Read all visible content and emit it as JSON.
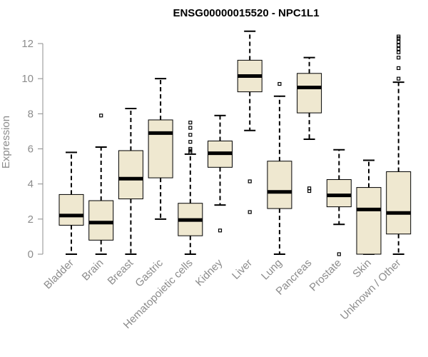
{
  "chart_data": {
    "type": "boxplot",
    "title": "ENSG00000015520 - NPC1L1",
    "ylabel": "Expression",
    "xlabel": "",
    "ylim": [
      0,
      12.7
    ],
    "yticks": [
      0,
      2,
      4,
      6,
      8,
      10,
      12
    ],
    "box_color": "#efe8d0",
    "categories": [
      "Bladder",
      "Brain",
      "Breast",
      "Gastric",
      "Hematopoietic cells",
      "Kidney",
      "Liver",
      "Lung",
      "Pancreas",
      "Prostate",
      "Skin",
      "Unknown / Other"
    ],
    "boxes": [
      {
        "name": "Bladder",
        "min": 0,
        "q1": 1.65,
        "median": 2.2,
        "q3": 3.4,
        "max": 5.8,
        "outliers": []
      },
      {
        "name": "Brain",
        "min": 0,
        "q1": 0.8,
        "median": 1.8,
        "q3": 3.05,
        "max": 6.1,
        "outliers": [
          7.9
        ]
      },
      {
        "name": "Breast",
        "min": 0,
        "q1": 3.15,
        "median": 4.3,
        "q3": 5.9,
        "max": 8.3,
        "outliers": []
      },
      {
        "name": "Gastric",
        "min": 2.0,
        "q1": 4.35,
        "median": 6.9,
        "q3": 7.65,
        "max": 10.0,
        "outliers": []
      },
      {
        "name": "Hematopoietic cells",
        "min": 0,
        "q1": 1.05,
        "median": 1.95,
        "q3": 2.9,
        "max": 5.7,
        "outliers": [
          5.8,
          5.9,
          6.0,
          6.4,
          6.8,
          7.2,
          7.5
        ]
      },
      {
        "name": "Kidney",
        "min": 2.8,
        "q1": 4.95,
        "median": 5.75,
        "q3": 6.45,
        "max": 7.9,
        "outliers": [
          1.35
        ]
      },
      {
        "name": "Liver",
        "min": 7.05,
        "q1": 9.25,
        "median": 10.15,
        "q3": 11.05,
        "max": 12.7,
        "outliers": [
          2.4,
          4.15
        ]
      },
      {
        "name": "Lung",
        "min": 0,
        "q1": 2.6,
        "median": 3.55,
        "q3": 5.3,
        "max": 9.0,
        "outliers": [
          9.7
        ]
      },
      {
        "name": "Pancreas",
        "min": 6.55,
        "q1": 8.05,
        "median": 9.5,
        "q3": 10.3,
        "max": 11.2,
        "outliers": [
          3.6,
          3.75
        ]
      },
      {
        "name": "Prostate",
        "min": 1.7,
        "q1": 2.7,
        "median": 3.35,
        "q3": 4.25,
        "max": 5.95,
        "outliers": [
          0.0
        ]
      },
      {
        "name": "Skin",
        "min": 0,
        "q1": 0,
        "median": 2.55,
        "q3": 3.8,
        "max": 5.35,
        "outliers": []
      },
      {
        "name": "Unknown / Other",
        "min": 0,
        "q1": 1.15,
        "median": 2.35,
        "q3": 4.7,
        "max": 9.8,
        "outliers": [
          10.0,
          10.6,
          11.2,
          11.5,
          11.7,
          11.9,
          12.1,
          12.3,
          12.4
        ]
      }
    ]
  }
}
